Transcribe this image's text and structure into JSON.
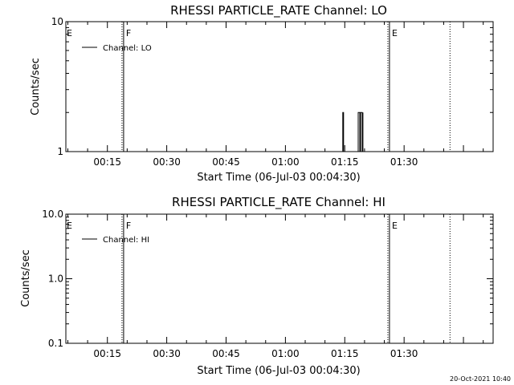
{
  "chart_data": [
    {
      "type": "line",
      "title": "RHESSI PARTICLE_RATE Channel: LO",
      "xlabel": "Start Time (06-Jul-03 00:04:30)",
      "ylabel": "Counts/sec",
      "yscale": "log",
      "xlim_minutes": [
        4.5,
        112.5
      ],
      "ylim": [
        1,
        10
      ],
      "x_ticks": [
        15,
        30,
        45,
        60,
        75,
        90
      ],
      "x_tick_labels": [
        "00:15",
        "00:30",
        "00:45",
        "01:00",
        "01:15",
        "01:30"
      ],
      "y_ticks": [
        1,
        10
      ],
      "y_tick_labels": [
        "1",
        "10"
      ],
      "legend": {
        "label": "Channel: LO",
        "placement": "top-left"
      },
      "markers": [
        {
          "label": "E",
          "x": 4.5,
          "style": "none"
        },
        {
          "label": "F",
          "x": 19.1,
          "style": "solid+dotted"
        },
        {
          "label": "E",
          "x": 86.3,
          "style": "solid+dotted"
        },
        {
          "label": "",
          "x": 101.6,
          "style": "dotted"
        }
      ],
      "series": [
        {
          "name": "Channel: LO",
          "x": [
            74.5,
            74.5,
            74.7,
            74.7,
            78.4,
            78.4,
            78.8,
            78.8,
            79.0,
            79.0,
            79.4,
            79.4,
            79.6,
            79.6
          ],
          "y": [
            1,
            2,
            2,
            1,
            1,
            2,
            2,
            1,
            1,
            2,
            2,
            1,
            1,
            2
          ]
        }
      ]
    },
    {
      "type": "line",
      "title": "RHESSI PARTICLE_RATE Channel: HI",
      "xlabel": "Start Time (06-Jul-03 00:04:30)",
      "ylabel": "Counts/sec",
      "yscale": "log",
      "xlim_minutes": [
        4.5,
        112.5
      ],
      "ylim": [
        0.1,
        10
      ],
      "x_ticks": [
        15,
        30,
        45,
        60,
        75,
        90
      ],
      "x_tick_labels": [
        "00:15",
        "00:30",
        "00:45",
        "01:00",
        "01:15",
        "01:30"
      ],
      "y_ticks": [
        0.1,
        1,
        10
      ],
      "y_tick_labels": [
        "0.1",
        "1.0",
        "10.0"
      ],
      "legend": {
        "label": "Channel: HI",
        "placement": "top-left"
      },
      "markers": [
        {
          "label": "E",
          "x": 4.5,
          "style": "none"
        },
        {
          "label": "F",
          "x": 19.1,
          "style": "solid+dotted"
        },
        {
          "label": "E",
          "x": 86.3,
          "style": "solid+dotted"
        },
        {
          "label": "",
          "x": 101.6,
          "style": "dotted"
        }
      ],
      "series": [
        {
          "name": "Channel: HI",
          "x": [],
          "y": []
        }
      ]
    }
  ],
  "footer": {
    "timestamp": "20-Oct-2021 10:40"
  },
  "colors": {
    "axes": "#000000",
    "background": "#ffffff"
  }
}
